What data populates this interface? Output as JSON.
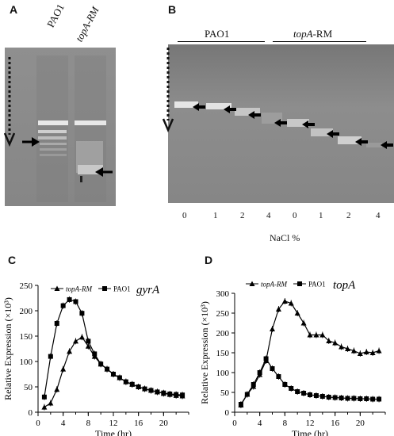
{
  "panel_a": {
    "letter": "A",
    "lanes": [
      "PAO1",
      "topA-RM"
    ]
  },
  "panel_b": {
    "letter": "B",
    "group_left": "PAO1",
    "group_right_italic": "topA",
    "group_right_rest": "-RM",
    "nacl_ticks": [
      "0",
      "1",
      "2",
      "4",
      "0",
      "1",
      "2",
      "4"
    ],
    "xlabel": "NaCl %"
  },
  "chart_data": [
    {
      "panel": "C",
      "type": "line",
      "gene_label": "gyrA",
      "xlabel": "Time (hr)",
      "ylabel": "Relative Expression (×10³)",
      "xlim": [
        0,
        24
      ],
      "ylim": [
        0,
        250
      ],
      "xticks": [
        "0",
        "4",
        "8",
        "12",
        "16",
        "20"
      ],
      "yticks": [
        "0",
        "50",
        "100",
        "150",
        "200",
        "250"
      ],
      "series": [
        {
          "name": "topA-RM",
          "marker": "triangle",
          "x": [
            1,
            2,
            3,
            4,
            5,
            6,
            7,
            8,
            9,
            10,
            11,
            12,
            13,
            14,
            15,
            16,
            17,
            18,
            19,
            20,
            21,
            22,
            23
          ],
          "y": [
            10,
            18,
            45,
            85,
            120,
            140,
            148,
            130,
            110,
            95,
            85,
            75,
            68,
            60,
            55,
            50,
            46,
            43,
            40,
            37,
            35,
            33,
            32
          ]
        },
        {
          "name": "PAO1",
          "marker": "square",
          "x": [
            1,
            2,
            3,
            4,
            5,
            6,
            7,
            8,
            9,
            10,
            11,
            12,
            13,
            14,
            15,
            16,
            17,
            18,
            19,
            20,
            21,
            22,
            23
          ],
          "y": [
            30,
            110,
            175,
            210,
            222,
            218,
            195,
            140,
            115,
            95,
            85,
            75,
            68,
            60,
            55,
            50,
            46,
            43,
            40,
            38,
            36,
            35,
            34
          ]
        }
      ]
    },
    {
      "panel": "D",
      "type": "line",
      "gene_label": "topA",
      "xlabel": "Time (hr)",
      "ylabel": "Relative Expression (×10³)",
      "xlim": [
        0,
        24
      ],
      "ylim": [
        0,
        300
      ],
      "xticks": [
        "0",
        "4",
        "8",
        "12",
        "16",
        "20"
      ],
      "yticks": [
        "0",
        "50",
        "100",
        "150",
        "200",
        "250",
        "300"
      ],
      "series": [
        {
          "name": "topA-RM",
          "marker": "triangle",
          "x": [
            1,
            2,
            3,
            4,
            5,
            6,
            7,
            8,
            9,
            10,
            11,
            12,
            13,
            14,
            15,
            16,
            17,
            18,
            19,
            20,
            21,
            22,
            23
          ],
          "y": [
            18,
            45,
            65,
            95,
            130,
            210,
            260,
            280,
            275,
            250,
            225,
            195,
            195,
            195,
            180,
            175,
            165,
            160,
            155,
            148,
            152,
            150,
            155
          ]
        },
        {
          "name": "PAO1",
          "marker": "square",
          "x": [
            1,
            2,
            3,
            4,
            5,
            6,
            7,
            8,
            9,
            10,
            11,
            12,
            13,
            14,
            15,
            16,
            17,
            18,
            19,
            20,
            21,
            22,
            23
          ],
          "y": [
            20,
            45,
            70,
            100,
            135,
            110,
            90,
            70,
            60,
            52,
            48,
            44,
            42,
            40,
            38,
            37,
            36,
            35,
            35,
            34,
            34,
            33,
            33
          ]
        }
      ]
    }
  ]
}
